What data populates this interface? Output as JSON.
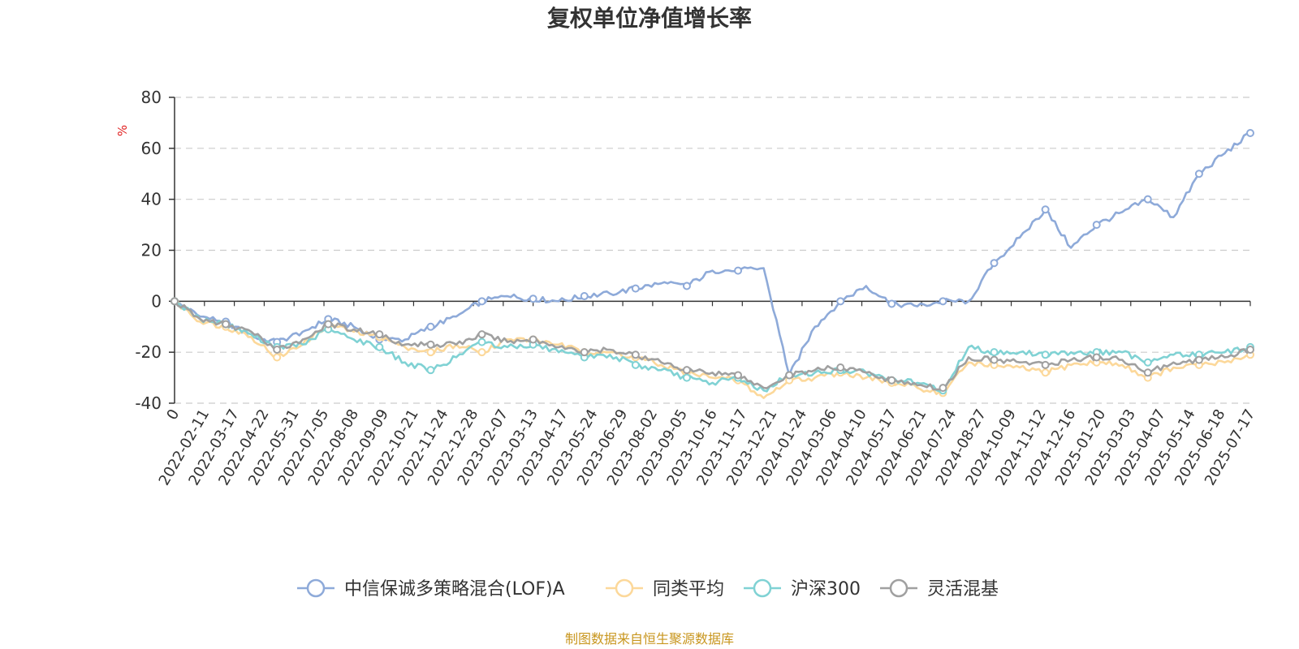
{
  "chart_data": {
    "type": "line",
    "title": "复权单位净值增长率",
    "y_unit": "%",
    "ylim": [
      -40,
      80
    ],
    "yticks": [
      80,
      60,
      40,
      20,
      0,
      -20,
      -40
    ],
    "grid": true,
    "legend_position": "bottom",
    "x_tick_labels": [
      "0",
      "2022-02-11",
      "2022-03-17",
      "2022-04-22",
      "2022-05-31",
      "2022-07-05",
      "2022-08-08",
      "2022-09-09",
      "2022-10-21",
      "2022-11-24",
      "2022-12-28",
      "2023-02-07",
      "2023-03-13",
      "2023-04-17",
      "2023-05-24",
      "2023-06-29",
      "2023-08-02",
      "2023-09-05",
      "2023-10-16",
      "2023-11-17",
      "2023-12-21",
      "2024-01-24",
      "2024-03-06",
      "2024-04-10",
      "2024-05-17",
      "2024-06-21",
      "2024-07-24",
      "2024-08-27",
      "2024-10-09",
      "2024-11-12",
      "2024-12-16",
      "2025-01-20",
      "2025-03-03",
      "2025-04-07",
      "2025-05-14",
      "2025-06-18",
      "2025-07-17"
    ],
    "series": [
      {
        "name": "中信保诚多策略混合(LOF)A",
        "color": "#8eaad9",
        "values": [
          0,
          -6,
          -8,
          -14,
          -16,
          -12,
          -7,
          -10,
          -15,
          -15,
          -10,
          -6,
          0,
          2,
          1,
          0,
          2,
          3,
          5,
          7,
          6,
          12,
          12,
          13,
          -29,
          -10,
          0,
          6,
          -1,
          -2,
          0,
          0,
          15,
          25,
          36,
          21,
          30,
          35,
          40,
          33,
          50,
          58,
          66
        ]
      },
      {
        "name": "同类平均",
        "color": "#fcd89a",
        "values": [
          0,
          -8,
          -10,
          -14,
          -22,
          -17,
          -9,
          -12,
          -14,
          -18,
          -20,
          -17,
          -20,
          -15,
          -15,
          -17,
          -20,
          -20,
          -22,
          -25,
          -28,
          -30,
          -31,
          -38,
          -31,
          -30,
          -28,
          -30,
          -32,
          -34,
          -36,
          -24,
          -25,
          -26,
          -28,
          -25,
          -24,
          -25,
          -30,
          -26,
          -25,
          -24,
          -21
        ]
      },
      {
        "name": "沪深300",
        "color": "#80d2d4",
        "values": [
          0,
          -7,
          -9,
          -13,
          -18,
          -17,
          -11,
          -15,
          -18,
          -24,
          -27,
          -22,
          -16,
          -18,
          -17,
          -20,
          -22,
          -21,
          -25,
          -27,
          -30,
          -32,
          -30,
          -35,
          -29,
          -28,
          -27,
          -28,
          -31,
          -32,
          -35,
          -18,
          -20,
          -20,
          -21,
          -20,
          -20,
          -20,
          -24,
          -21,
          -21,
          -20,
          -18
        ]
      },
      {
        "name": "灵活混基",
        "color": "#a0a0a0",
        "values": [
          0,
          -7,
          -9,
          -12,
          -19,
          -15,
          -9,
          -11,
          -13,
          -17,
          -17,
          -17,
          -13,
          -16,
          -15,
          -18,
          -20,
          -19,
          -21,
          -24,
          -27,
          -28,
          -29,
          -34,
          -29,
          -27,
          -26,
          -28,
          -31,
          -33,
          -34,
          -22,
          -23,
          -24,
          -25,
          -23,
          -22,
          -23,
          -28,
          -24,
          -23,
          -22,
          -19
        ]
      }
    ]
  },
  "footer": {
    "source": "制图数据来自恒生聚源数据库"
  }
}
